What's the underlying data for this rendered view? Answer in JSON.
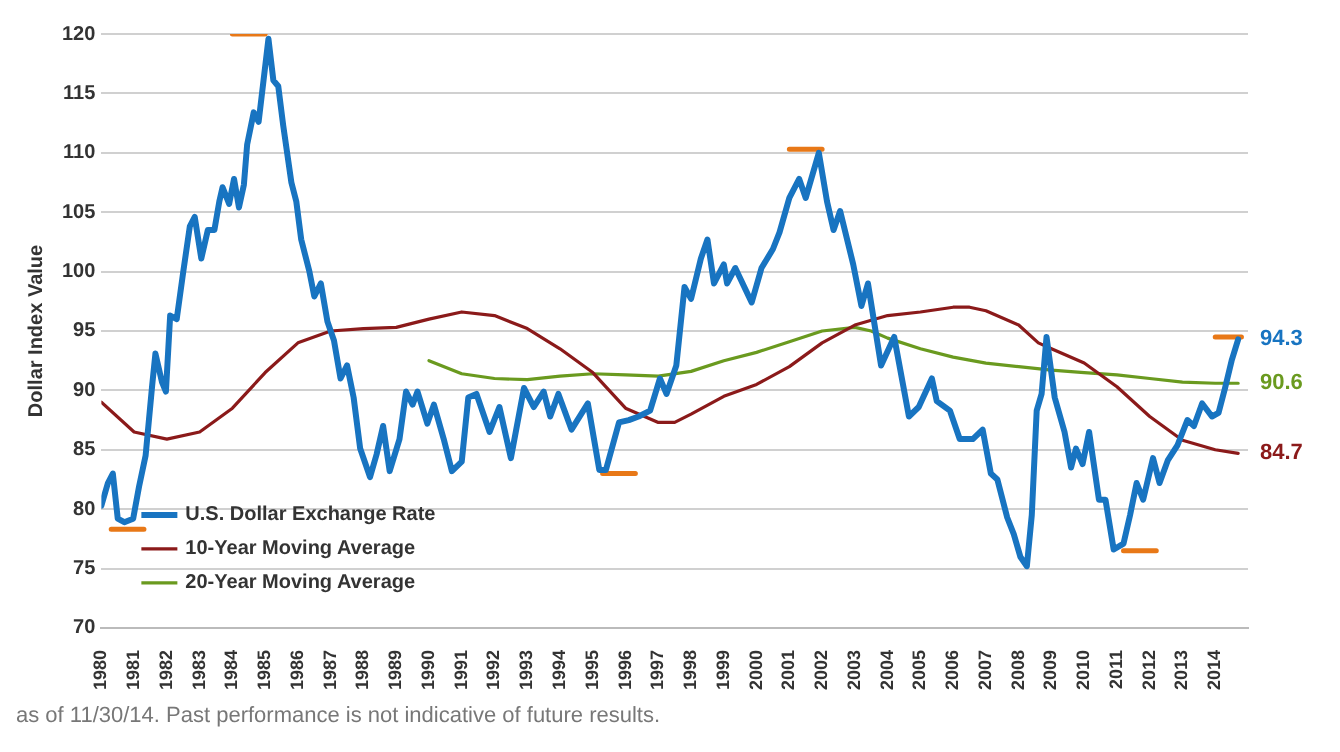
{
  "chart_data": {
    "type": "line",
    "ylabel": "Dollar Index Value",
    "xlim": [
      1980,
      2015
    ],
    "xticks": [
      1980,
      1981,
      1982,
      1983,
      1984,
      1985,
      1986,
      1987,
      1988,
      1989,
      1990,
      1991,
      1992,
      1993,
      1994,
      1995,
      1996,
      1997,
      1998,
      1999,
      2000,
      2001,
      2002,
      2003,
      2004,
      2005,
      2006,
      2007,
      2008,
      2009,
      2010,
      2011,
      2012,
      2013,
      2014
    ],
    "ylim": [
      70,
      120
    ],
    "yticks": [
      70,
      75,
      80,
      85,
      90,
      95,
      100,
      105,
      110,
      115,
      120
    ],
    "grid": "y",
    "legend": "bottom left",
    "marker": "none",
    "line_style": "solid",
    "annotations": [
      "as of 11/30/14. Past performance is not indicative of future results."
    ],
    "series": [
      {
        "name": "U.S. Dollar Exchange Rate",
        "color": "#1874c1",
        "x": [
          1980.0,
          1980.2,
          1980.35,
          1980.5,
          1980.7,
          1980.97,
          1981.15,
          1981.35,
          1981.55,
          1981.65,
          1981.85,
          1981.97,
          1982.1,
          1982.3,
          1982.5,
          1982.7,
          1982.85,
          1983.05,
          1983.25,
          1983.45,
          1983.6,
          1983.7,
          1983.9,
          1984.05,
          1984.2,
          1984.35,
          1984.45,
          1984.65,
          1984.8,
          1984.95,
          1985.1,
          1985.25,
          1985.4,
          1985.55,
          1985.8,
          1985.95,
          1986.1,
          1986.35,
          1986.5,
          1986.7,
          1986.9,
          1987.1,
          1987.3,
          1987.5,
          1987.7,
          1987.9,
          1988.2,
          1988.4,
          1988.6,
          1988.8,
          1989.1,
          1989.3,
          1989.5,
          1989.65,
          1989.95,
          1990.15,
          1990.45,
          1990.7,
          1991.0,
          1991.2,
          1991.45,
          1991.85,
          1992.15,
          1992.5,
          1992.9,
          1993.2,
          1993.5,
          1993.7,
          1993.95,
          1994.35,
          1994.85,
          1995.2,
          1995.4,
          1995.8,
          1996.1,
          1996.4,
          1996.75,
          1997.05,
          1997.25,
          1997.55,
          1997.8,
          1998.0,
          1998.3,
          1998.5,
          1998.7,
          1999.0,
          1999.1,
          1999.35,
          1999.85,
          2000.15,
          2000.5,
          2000.7,
          2001.0,
          2001.3,
          2001.5,
          2001.9,
          2002.15,
          2002.35,
          2002.55,
          2002.95,
          2003.2,
          2003.4,
          2003.8,
          2004.2,
          2004.65,
          2004.95,
          2005.35,
          2005.5,
          2005.9,
          2006.2,
          2006.6,
          2006.9,
          2007.15,
          2007.35,
          2007.65,
          2007.85,
          2008.05,
          2008.25,
          2008.4,
          2008.55,
          2008.7,
          2008.85,
          2009.1,
          2009.4,
          2009.6,
          2009.75,
          2009.95,
          2010.15,
          2010.45,
          2010.65,
          2010.9,
          2011.2,
          2011.4,
          2011.6,
          2011.8,
          2012.1,
          2012.3,
          2012.55,
          2012.85,
          2013.15,
          2013.35,
          2013.6,
          2013.9,
          2014.1,
          2014.3,
          2014.5,
          2014.7
        ],
        "values": [
          80.3,
          82.2,
          83,
          79.2,
          78.9,
          79.2,
          81.9,
          84.5,
          90.4,
          93.1,
          90.7,
          89.9,
          96.3,
          96.0,
          100,
          103.8,
          104.6,
          101.1,
          103.5,
          103.5,
          105.9,
          107.1,
          105.7,
          107.8,
          105.4,
          107.3,
          110.7,
          113.4,
          112.6,
          116.1,
          119.6,
          116.1,
          115.6,
          112.3,
          107.5,
          105.9,
          102.7,
          100,
          97.9,
          99,
          95.8,
          94.2,
          91,
          92.1,
          89.4,
          85.1,
          82.7,
          84.6,
          87,
          83.2,
          85.9,
          89.9,
          88.8,
          89.9,
          87.2,
          88.8,
          85.9,
          83.2,
          84,
          89.4,
          89.7,
          86.5,
          88.6,
          84.3,
          90.2,
          88.6,
          89.9,
          87.8,
          89.7,
          86.7,
          88.9,
          83.3,
          83.3,
          87.3,
          87.5,
          87.8,
          88.3,
          91,
          89.7,
          92.1,
          98.7,
          97.7,
          101.1,
          102.7,
          99,
          100.6,
          99,
          100.3,
          97.4,
          100.3,
          101.9,
          103.3,
          106.2,
          107.8,
          106.2,
          110,
          105.9,
          103.5,
          105.1,
          100.6,
          97.1,
          99,
          92.1,
          94.5,
          87.8,
          88.6,
          91,
          89.1,
          88.3,
          85.9,
          85.9,
          86.7,
          83,
          82.5,
          79.3,
          77.9,
          76,
          75.2,
          79.5,
          88.3,
          89.7,
          94.5,
          89.4,
          86.5,
          83.5,
          85.1,
          83.8,
          86.5,
          80.8,
          80.8,
          76.6,
          77.1,
          79.5,
          82.2,
          80.8,
          84.3,
          82.2,
          84.1,
          85.4,
          87.5,
          87,
          88.9,
          87.8,
          88.1,
          90.2,
          92.5,
          94.3
        ],
        "value_labels": [
          null,
          null,
          null,
          null,
          null,
          null,
          null,
          null,
          null,
          null,
          null,
          null,
          null,
          null,
          null,
          null,
          null,
          null,
          null,
          null,
          null,
          null,
          null,
          null,
          null,
          null,
          null,
          null,
          null,
          null,
          null,
          null,
          null,
          null,
          null,
          null,
          null,
          null,
          null,
          null,
          null,
          null,
          null,
          null,
          null,
          null,
          null,
          null,
          null,
          null,
          null,
          null,
          null,
          null,
          null,
          null,
          null,
          null,
          null,
          null,
          null,
          null,
          null,
          null,
          null,
          null,
          null,
          null,
          null,
          null,
          null,
          null,
          null,
          null,
          null,
          null,
          null,
          null,
          null,
          null,
          null,
          null,
          null,
          null,
          null,
          null,
          null,
          null,
          null,
          null,
          null,
          null,
          null,
          null,
          null,
          null,
          null,
          null,
          null,
          null,
          null,
          null,
          null,
          null,
          null,
          null,
          null,
          null,
          null,
          null,
          null,
          null,
          null,
          null,
          null,
          null,
          null,
          null,
          null,
          null,
          null,
          null,
          null,
          null,
          null,
          null,
          null,
          null,
          null,
          null,
          null,
          null,
          null,
          null,
          null,
          null,
          null,
          null,
          null,
          null,
          null,
          null,
          null,
          null,
          null,
          null,
          "94.3"
        ]
      },
      {
        "name": "10-Year Moving Average",
        "color": "#8b1a1a",
        "x": [
          1980,
          1981,
          1982,
          1983,
          1984,
          1985,
          1986,
          1987,
          1988,
          1989,
          1990,
          1991,
          1992,
          1993,
          1994,
          1995,
          1996,
          1997,
          1997.5,
          1998,
          1999,
          2000,
          2001,
          2002,
          2003,
          2004,
          2005,
          2006,
          2006.5,
          2007,
          2008,
          2008.6,
          2009,
          2010,
          2011,
          2012,
          2013,
          2014,
          2014.7
        ],
        "values": [
          89,
          86.5,
          85.9,
          86.5,
          88.5,
          91.5,
          94,
          95,
          95.2,
          95.3,
          96,
          96.6,
          96.3,
          95.2,
          93.5,
          91.5,
          88.5,
          87.3,
          87.3,
          88,
          89.5,
          90.5,
          92,
          94,
          95.5,
          96.3,
          96.6,
          97,
          97,
          96.7,
          95.5,
          94,
          93.5,
          92.3,
          90.3,
          87.8,
          85.8,
          85,
          84.7
        ],
        "value_labels": [
          null,
          null,
          null,
          null,
          null,
          null,
          null,
          null,
          null,
          null,
          null,
          null,
          null,
          null,
          null,
          null,
          null,
          null,
          null,
          null,
          null,
          null,
          null,
          null,
          null,
          null,
          null,
          null,
          null,
          null,
          null,
          null,
          null,
          null,
          null,
          null,
          null,
          null,
          "84.7"
        ]
      },
      {
        "name": "20-Year Moving Average",
        "color": "#6a9a1f",
        "x": [
          1990,
          1991,
          1992,
          1993,
          1994,
          1995,
          1996,
          1997,
          1998,
          1999,
          2000,
          2001,
          2002,
          2003,
          2003.5,
          2004,
          2005,
          2006,
          2007,
          2008,
          2009,
          2010,
          2011,
          2012,
          2013,
          2014,
          2014.7
        ],
        "values": [
          92.5,
          91.4,
          91,
          90.9,
          91.2,
          91.4,
          91.3,
          91.2,
          91.6,
          92.5,
          93.2,
          94.1,
          95,
          95.3,
          95,
          94.4,
          93.5,
          92.8,
          92.3,
          92,
          91.7,
          91.5,
          91.3,
          91,
          90.7,
          90.6,
          90.6
        ],
        "value_labels": [
          null,
          null,
          null,
          null,
          null,
          null,
          null,
          null,
          null,
          null,
          null,
          null,
          null,
          null,
          null,
          null,
          null,
          null,
          null,
          null,
          null,
          null,
          null,
          null,
          null,
          null,
          "90.6"
        ]
      },
      {
        "color": "#e87817",
        "x": [
          1980.3,
          1981.3,
          1981.31,
          1984,
          1985,
          1985.01,
          1995.3,
          1996.3,
          1996.31,
          2001,
          2002,
          2002.01,
          2011.2,
          2012.2,
          2012.21,
          2014,
          2014.8
        ],
        "values": [
          78.3,
          78.3,
          null,
          120,
          120,
          null,
          83,
          83,
          null,
          110.3,
          110.3,
          null,
          76.5,
          76.5,
          null,
          94.5,
          94.5
        ]
      }
    ]
  }
}
